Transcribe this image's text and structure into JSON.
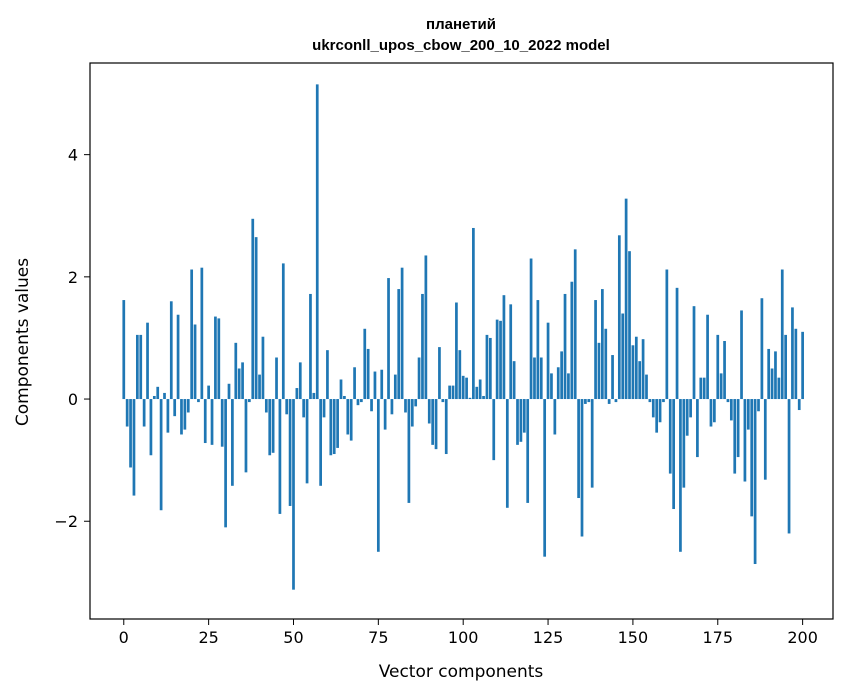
{
  "chart_data": {
    "type": "bar",
    "title": [
      "планетий",
      "ukrconll_upos_cbow_200_10_2022 model"
    ],
    "xlabel": "Vector components",
    "ylabel": "Components values",
    "xlim": [
      -9.95,
      208.95
    ],
    "ylim": [
      -3.6,
      5.5
    ],
    "xticks": [
      0,
      25,
      50,
      75,
      100,
      125,
      150,
      175,
      200
    ],
    "xtick_labels": [
      "0",
      "25",
      "50",
      "75",
      "100",
      "125",
      "150",
      "175",
      "200"
    ],
    "yticks": [
      -2,
      0,
      2,
      4
    ],
    "ytick_labels": [
      "−2",
      "0",
      "2",
      "4"
    ],
    "grid": false,
    "bar_color": "#1f77b4",
    "values": [
      1.62,
      -0.45,
      -1.12,
      -1.58,
      1.05,
      1.05,
      -0.45,
      1.25,
      -0.92,
      0.05,
      0.2,
      -1.82,
      0.1,
      -0.55,
      1.6,
      -0.28,
      1.38,
      -0.58,
      -0.5,
      -0.22,
      2.12,
      1.22,
      -0.05,
      2.15,
      -0.72,
      0.22,
      -0.75,
      1.35,
      1.32,
      -0.78,
      -2.1,
      0.25,
      -1.42,
      0.92,
      0.5,
      0.6,
      -1.2,
      -0.05,
      2.95,
      2.65,
      0.4,
      1.02,
      -0.22,
      -0.92,
      -0.88,
      0.68,
      -1.88,
      2.22,
      -0.25,
      -1.75,
      -3.12,
      0.18,
      0.6,
      -0.3,
      -1.38,
      1.72,
      0.1,
      5.15,
      -1.42,
      -0.3,
      0.8,
      -0.92,
      -0.9,
      -0.8,
      0.32,
      0.05,
      -0.58,
      -0.68,
      0.52,
      -0.1,
      -0.05,
      1.15,
      0.82,
      -0.2,
      0.45,
      -2.5,
      0.48,
      -0.5,
      1.98,
      -0.25,
      0.4,
      1.8,
      2.15,
      -0.22,
      -1.7,
      -0.45,
      -0.12,
      0.68,
      1.72,
      2.35,
      -0.4,
      -0.75,
      -0.82,
      0.85,
      -0.05,
      -0.9,
      0.22,
      0.22,
      1.58,
      0.8,
      0.38,
      0.35,
      0.02,
      2.8,
      0.2,
      0.32,
      0.05,
      1.05,
      1.0,
      -1.0,
      1.3,
      1.28,
      1.7,
      -1.78,
      1.55,
      0.62,
      -0.75,
      -0.7,
      -0.55,
      -1.7,
      2.3,
      0.68,
      1.62,
      0.68,
      -2.58,
      1.25,
      0.42,
      -0.58,
      0.52,
      0.78,
      1.72,
      0.42,
      1.92,
      2.45,
      -1.62,
      -2.25,
      -0.08,
      -0.05,
      -1.45,
      1.62,
      0.92,
      1.8,
      1.15,
      -0.08,
      0.72,
      -0.05,
      2.68,
      1.4,
      3.28,
      2.42,
      0.88,
      1.02,
      0.62,
      0.98,
      0.4,
      -0.05,
      -0.3,
      -0.55,
      -0.38,
      -0.05,
      2.12,
      -1.22,
      -1.8,
      1.82,
      -2.5,
      -1.45,
      -0.6,
      -0.3,
      1.52,
      -0.95,
      0.35,
      0.35,
      1.38,
      -0.45,
      -0.38,
      1.05,
      0.42,
      0.95,
      -0.05,
      -0.35,
      -1.22,
      -0.95,
      1.45,
      -1.35,
      -0.5,
      -1.92,
      -2.7,
      -0.2,
      1.65,
      -1.32,
      0.82,
      0.5,
      0.78,
      0.35,
      2.12,
      1.05,
      -2.2,
      1.5,
      1.15,
      -0.18,
      1.1
    ]
  }
}
